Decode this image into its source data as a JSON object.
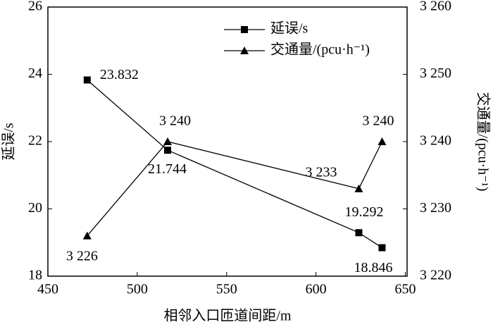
{
  "chart_data": {
    "type": "line",
    "x_label": "相邻入口匝道间距/m",
    "y_label": "延误/s",
    "y2_label": "交通量/(pcu·h⁻¹)",
    "x": [
      472,
      517,
      624,
      637
    ],
    "xlim": [
      450,
      651
    ],
    "xticks": [
      450,
      500,
      550,
      600,
      650
    ],
    "ylim": [
      18,
      26
    ],
    "yticks": [
      18,
      20,
      22,
      24,
      26
    ],
    "y2lim": [
      3220,
      3260
    ],
    "y2ticks": [
      {
        "value": 3220,
        "label": "3 220"
      },
      {
        "value": 3230,
        "label": "3 230"
      },
      {
        "value": 3240,
        "label": "3 240"
      },
      {
        "value": 3250,
        "label": "3 250"
      },
      {
        "value": 3260,
        "label": "3 260"
      }
    ],
    "series": [
      {
        "name": "延误/s",
        "color": "#000000",
        "marker": "square",
        "values": [
          23.832,
          21.744,
          19.292,
          18.846
        ]
      },
      {
        "name": "交通量/(pcu·h⁻¹)",
        "color": "#000000",
        "marker": "triangle",
        "axis": "y2",
        "values": [
          3226,
          3240,
          3233,
          3240
        ],
        "value_labels": [
          "3 226",
          "3 240",
          "3 233",
          "3 240"
        ]
      }
    ],
    "legend": "top-center"
  }
}
